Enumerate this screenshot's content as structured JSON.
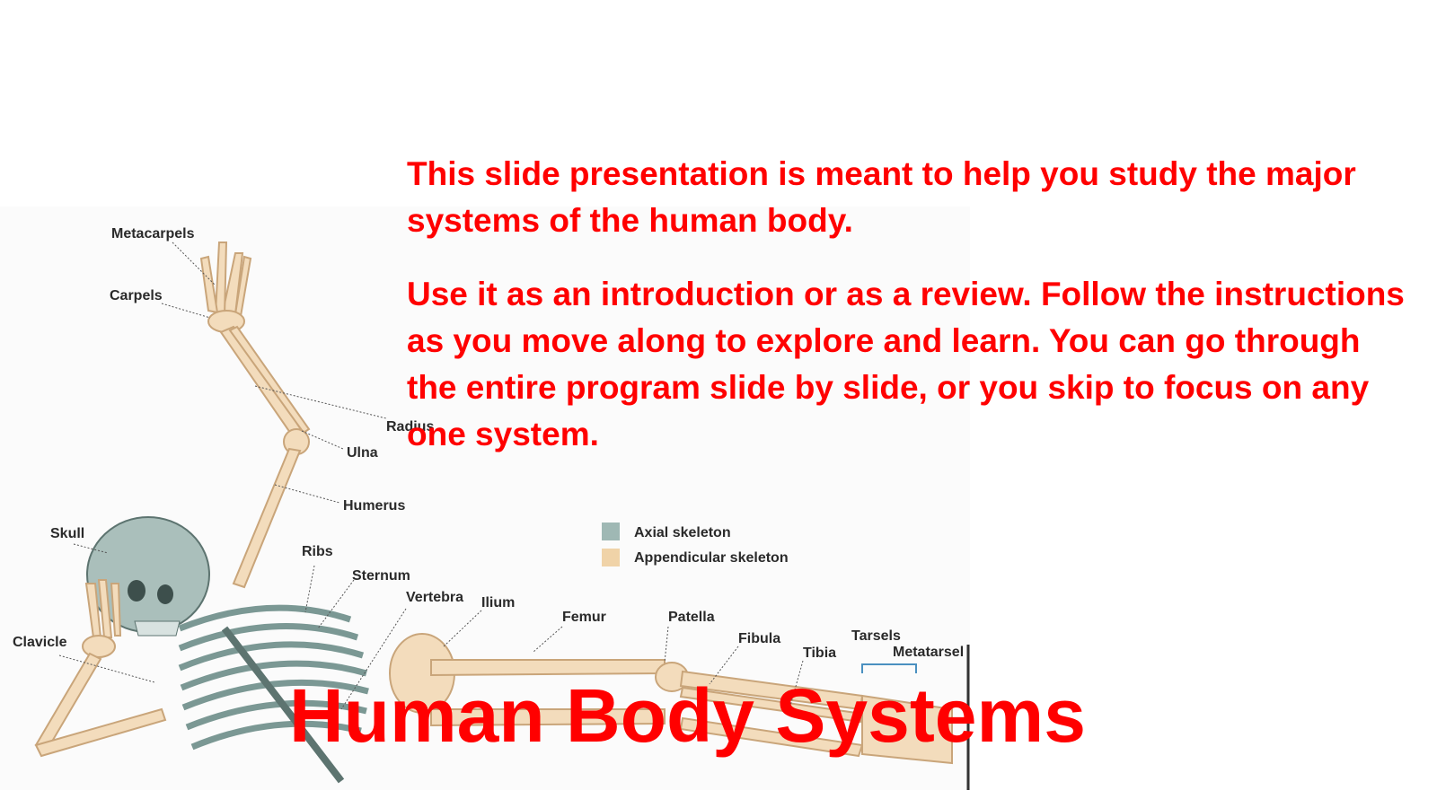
{
  "slide": {
    "intro_paragraph_1": "This slide presentation is meant to help you study the major systems of the human body.",
    "intro_paragraph_2": "Use it as an introduction or as a review. Follow the instructions as you move along to explore and learn. You can go through the entire program slide by slide, or you skip to focus on any one system.",
    "title": "Human Body Systems",
    "text_color": "#ff0000"
  },
  "skeleton_figure": {
    "labels": {
      "metacarpels": "Metacarpels",
      "carpels": "Carpels",
      "radius": "Radius",
      "ulna": "Ulna",
      "humerus": "Humerus",
      "skull": "Skull",
      "ribs": "Ribs",
      "sternum": "Sternum",
      "vertebra": "Vertebra",
      "ilium": "Ilium",
      "femur": "Femur",
      "patella": "Patella",
      "fibula": "Fibula",
      "tibia": "Tibia",
      "tarsels": "Tarsels",
      "metatarsel": "Metatarsel",
      "clavicle": "Clavicle"
    },
    "legend": {
      "axial": "Axial skeleton",
      "appendicular": "Appendicular skeleton",
      "axial_color": "#9fb8b4",
      "appendicular_color": "#f0d3a8"
    }
  }
}
